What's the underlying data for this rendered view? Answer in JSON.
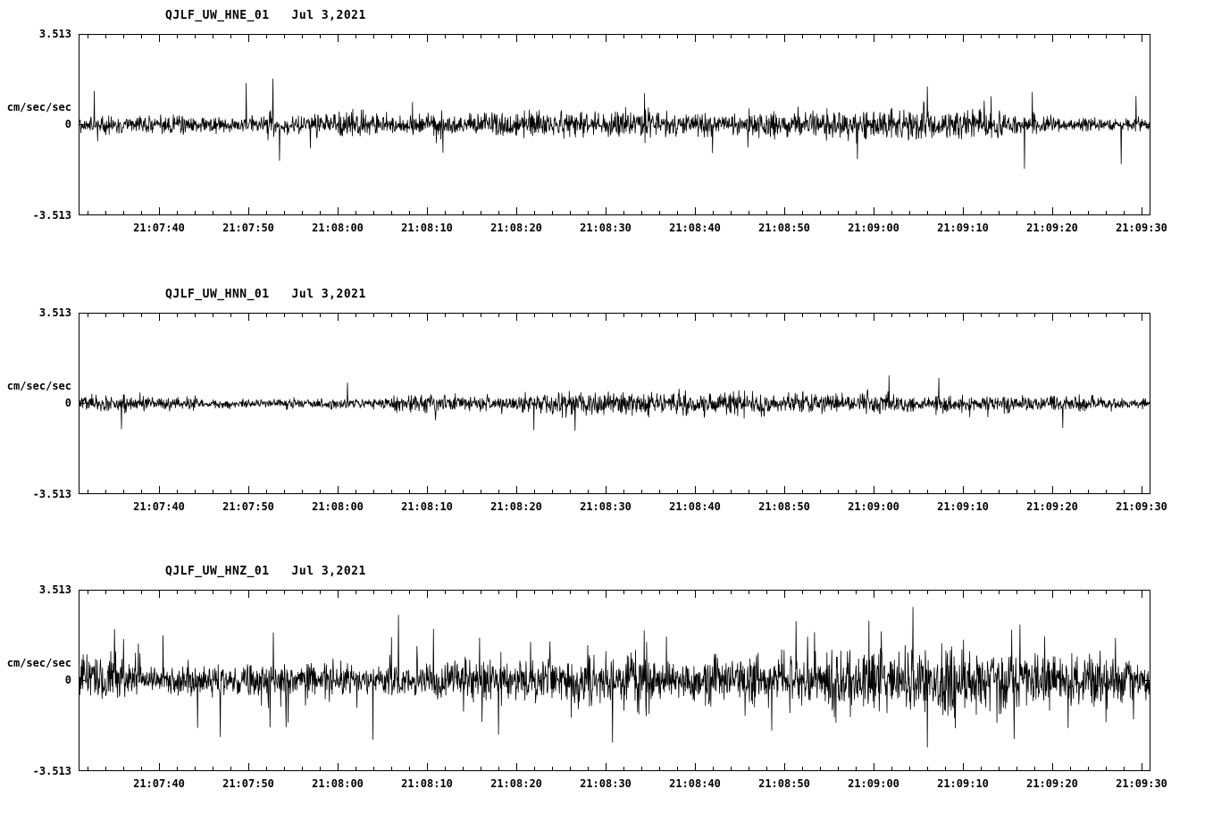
{
  "page": {
    "background": "#ffffff",
    "trace_color": "#000000",
    "description": "Three-component strong-motion seismogram display for station QJLF (UW network), channels HNE, HNN, HNZ"
  },
  "chart_data": [
    {
      "type": "line",
      "title": "QJLF_UW_HNE_01   Jul 3,2021",
      "station_channel": "QJLF_UW_HNE_01",
      "date": "Jul 3,2021",
      "ylabel": "cm/sec/sec",
      "ylim": [
        -3.513,
        3.513
      ],
      "ytick_labels": [
        "3.513",
        "0",
        "-3.513"
      ],
      "xtick_labels": [
        "21:07:40",
        "21:07:50",
        "21:08:00",
        "21:08:10",
        "21:08:20",
        "21:08:30",
        "21:08:40",
        "21:08:50",
        "21:09:00",
        "21:09:10",
        "21:09:20",
        "21:09:30"
      ],
      "x_start": "21:07:31",
      "x_end": "21:09:31",
      "xlabel": "",
      "grid": false,
      "legend": false,
      "series_description": "continuous zero-mean seismic background noise, east-west accelerometer component",
      "amplitude_typical": 0.55,
      "amplitude_peak": 1.9,
      "spike_density": 0.01
    },
    {
      "type": "line",
      "title": "QJLF_UW_HNN_01   Jul 3,2021",
      "station_channel": "QJLF_UW_HNN_01",
      "date": "Jul 3,2021",
      "ylabel": "cm/sec/sec",
      "ylim": [
        -3.513,
        3.513
      ],
      "ytick_labels": [
        "3.513",
        "0",
        "-3.513"
      ],
      "xtick_labels": [
        "21:07:40",
        "21:07:50",
        "21:08:00",
        "21:08:10",
        "21:08:20",
        "21:08:30",
        "21:08:40",
        "21:08:50",
        "21:09:00",
        "21:09:10",
        "21:09:20",
        "21:09:30"
      ],
      "x_start": "21:07:31",
      "x_end": "21:09:31",
      "xlabel": "",
      "grid": false,
      "legend": false,
      "series_description": "continuous zero-mean seismic background noise, north-south accelerometer component",
      "amplitude_typical": 0.45,
      "amplitude_peak": 1.5,
      "spike_density": 0.007
    },
    {
      "type": "line",
      "title": "QJLF_UW_HNZ_01   Jul 3,2021",
      "station_channel": "QJLF_UW_HNZ_01",
      "date": "Jul 3,2021",
      "ylabel": "cm/sec/sec",
      "ylim": [
        -3.513,
        3.513
      ],
      "ytick_labels": [
        "3.513",
        "0",
        "-3.513"
      ],
      "xtick_labels": [
        "21:07:40",
        "21:07:50",
        "21:08:00",
        "21:08:10",
        "21:08:20",
        "21:08:30",
        "21:08:40",
        "21:08:50",
        "21:09:00",
        "21:09:10",
        "21:09:20",
        "21:09:30"
      ],
      "x_start": "21:07:31",
      "x_end": "21:09:31",
      "xlabel": "",
      "grid": false,
      "legend": false,
      "series_description": "continuous zero-mean seismic background noise with frequent large spikes, vertical accelerometer component",
      "amplitude_typical": 1.25,
      "amplitude_peak": 3.3,
      "spike_density": 0.03
    }
  ]
}
